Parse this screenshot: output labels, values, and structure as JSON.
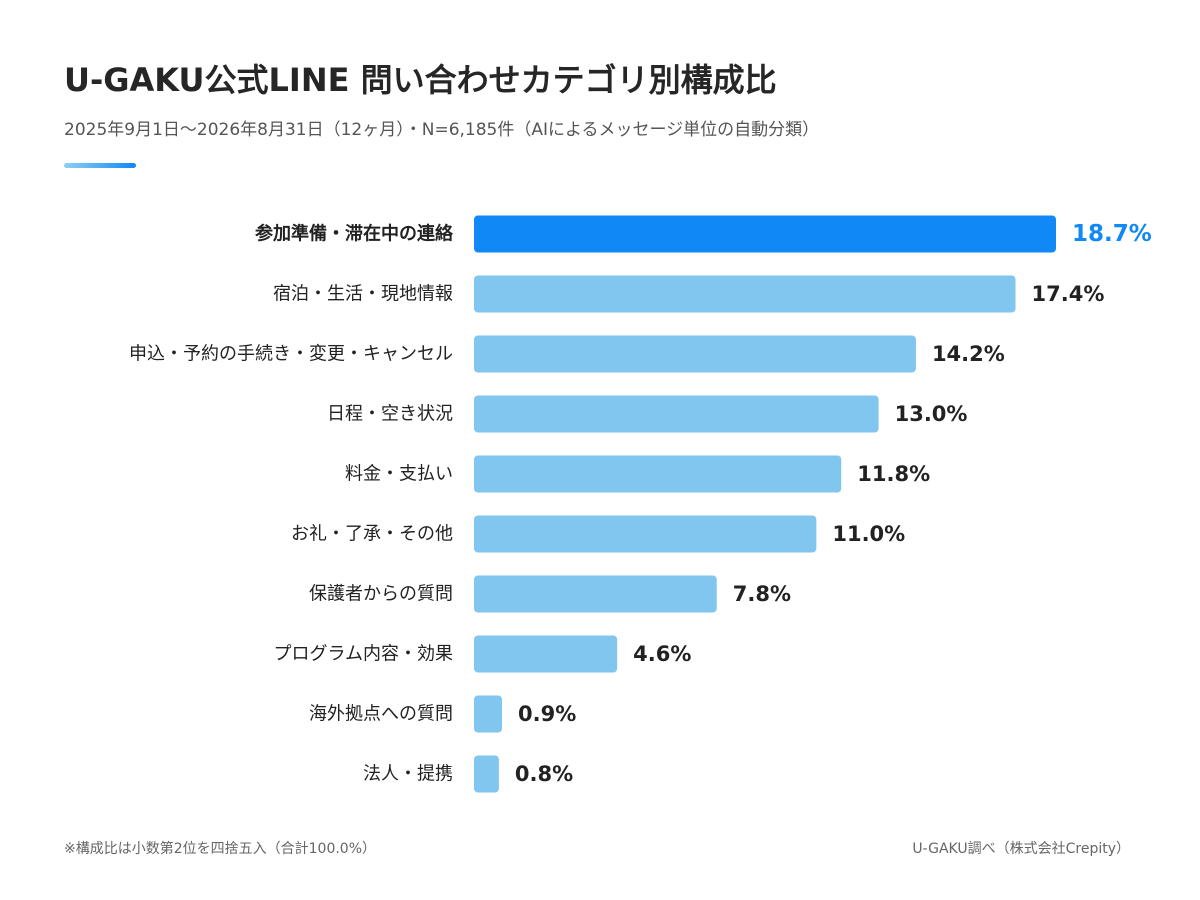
{
  "title": "U-GAKU公式LINE 問い合わせカテゴリ別構成比",
  "subtitle": "2025年9月1日〜2026年8月31日（12ヶ月）・N=6,185件（AIによるメッセージ単位の自動分類）",
  "footnote": "※構成比は小数第2位を四捨五入（合計100.0%）",
  "source": "U-GAKU調べ（株式会社Crepity）",
  "colors": {
    "highlight_bar": "#1088f5",
    "highlight_label": "#1088f5",
    "bar": "#80c6ef",
    "text": "#222222"
  },
  "chart_data": {
    "type": "bar",
    "orientation": "horizontal",
    "unit": "%",
    "highlight_index": 0,
    "categories": [
      "参加準備・滞在中の連絡",
      "宿泊・生活・現地情報",
      "申込・予約の手続き・変更・キャンセル",
      "日程・空き状況",
      "料金・支払い",
      "お礼・了承・その他",
      "保護者からの質問",
      "プログラム内容・効果",
      "海外拠点への質問",
      "法人・提携"
    ],
    "values": [
      18.7,
      17.4,
      14.2,
      13.0,
      11.8,
      11.0,
      7.8,
      4.6,
      0.9,
      0.8
    ],
    "value_labels": [
      "18.7%",
      "17.4%",
      "14.2%",
      "13.0%",
      "11.8%",
      "11.0%",
      "7.8%",
      "4.6%",
      "0.9%",
      "0.8%"
    ],
    "xlim": [
      0,
      18.7
    ],
    "grid": false,
    "legend": "none"
  }
}
